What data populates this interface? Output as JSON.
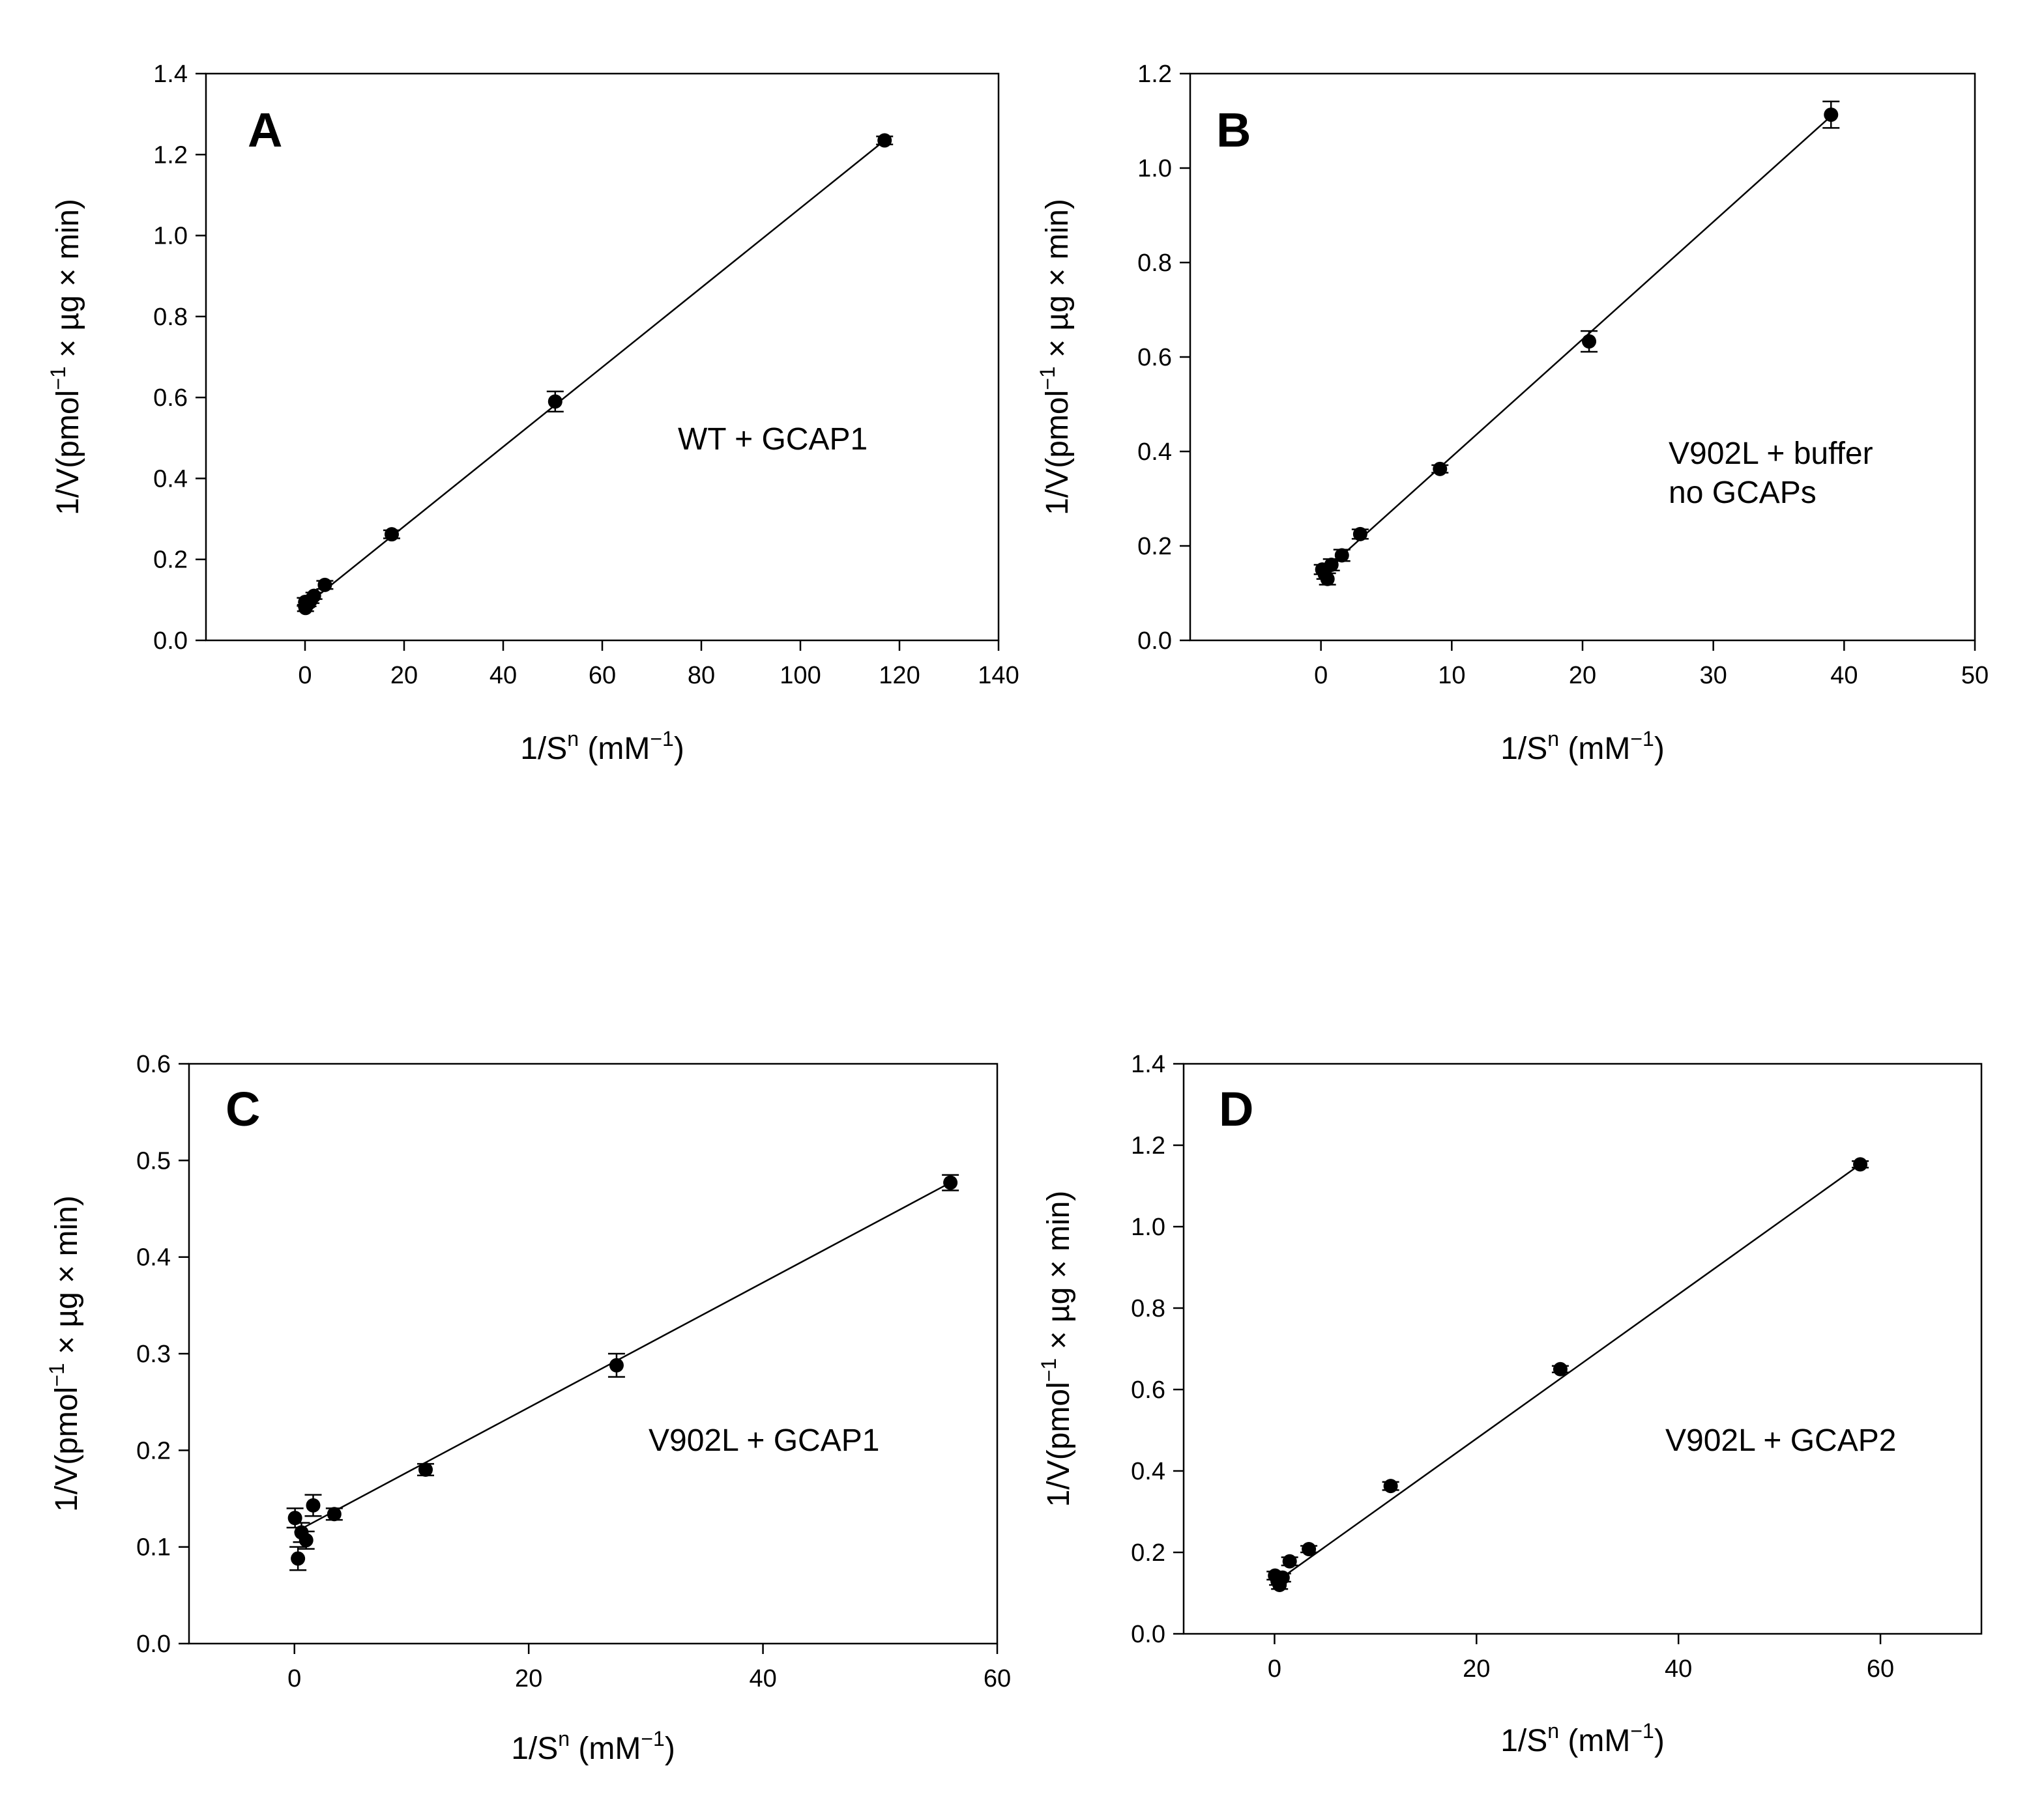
{
  "chart_data": [
    {
      "type": "scatter",
      "panel": "A",
      "annotation": [
        "WT + GCAP1"
      ],
      "xlabel": {
        "base": "1/S",
        "sup": "n",
        "unit_pre": " (mM",
        "unit_sup": "−1",
        "unit_post": ")"
      },
      "ylabel": {
        "pre": "1/V(pmol",
        "sup": "−1",
        "post": " × µg × min)"
      },
      "xlim": [
        -20,
        140
      ],
      "ylim": [
        0.0,
        1.4
      ],
      "xticks": [
        0,
        20,
        40,
        60,
        80,
        100,
        120,
        140
      ],
      "yticks": [
        0.0,
        0.2,
        0.4,
        0.6,
        0.8,
        1.0,
        1.2,
        1.4
      ],
      "xtick_labels": [
        "0",
        "20",
        "40",
        "60",
        "80",
        "100",
        "120",
        "140"
      ],
      "ytick_labels": [
        "0.0",
        "0.2",
        "0.4",
        "0.6",
        "0.8",
        "1.0",
        "1.2",
        "1.4"
      ],
      "fit_line": {
        "x": [
          0,
          117
        ],
        "y": [
          0.085,
          1.235
        ]
      },
      "points": [
        {
          "x": 0.05,
          "y": 0.095,
          "err": 0.01
        },
        {
          "x": 0.1,
          "y": 0.08,
          "err": 0.008
        },
        {
          "x": 0.3,
          "y": 0.088,
          "err": 0.006
        },
        {
          "x": 0.6,
          "y": 0.09,
          "err": 0.006
        },
        {
          "x": 1.2,
          "y": 0.1,
          "err": 0.008
        },
        {
          "x": 1.8,
          "y": 0.11,
          "err": 0.008
        },
        {
          "x": 4,
          "y": 0.137,
          "err": 0.01
        },
        {
          "x": 17.5,
          "y": 0.262,
          "err": 0.01
        },
        {
          "x": 50.5,
          "y": 0.59,
          "err": 0.025
        },
        {
          "x": 117,
          "y": 1.235,
          "err": 0.01
        }
      ]
    },
    {
      "type": "scatter",
      "panel": "B",
      "annotation": [
        "V902L + buffer",
        "no GCAPs"
      ],
      "xlabel": {
        "base": "1/S",
        "sup": "n",
        "unit_pre": " (mM",
        "unit_sup": "−1",
        "unit_post": ")"
      },
      "ylabel": {
        "pre": "1/V(pmol",
        "sup": "−1",
        "post": " × µg × min)"
      },
      "xlim": [
        -10,
        50
      ],
      "ylim": [
        0.0,
        1.2
      ],
      "xticks": [
        0,
        10,
        20,
        30,
        40,
        50
      ],
      "yticks": [
        0.0,
        0.2,
        0.4,
        0.6,
        0.8,
        1.0,
        1.2
      ],
      "xtick_labels": [
        "0",
        "10",
        "20",
        "30",
        "40",
        "50"
      ],
      "ytick_labels": [
        "0.0",
        "0.2",
        "0.4",
        "0.6",
        "0.8",
        "1.0",
        "1.2"
      ],
      "fit_line": {
        "x": [
          0,
          39
        ],
        "y": [
          0.14,
          1.11
        ]
      },
      "points": [
        {
          "x": 0.1,
          "y": 0.15,
          "err": 0.01
        },
        {
          "x": 0.3,
          "y": 0.14,
          "err": 0.01
        },
        {
          "x": 0.5,
          "y": 0.13,
          "err": 0.012
        },
        {
          "x": 0.8,
          "y": 0.16,
          "err": 0.012
        },
        {
          "x": 1.6,
          "y": 0.18,
          "err": 0.012
        },
        {
          "x": 3.0,
          "y": 0.225,
          "err": 0.01
        },
        {
          "x": 9.1,
          "y": 0.363,
          "err": 0.008
        },
        {
          "x": 20.5,
          "y": 0.633,
          "err": 0.022
        },
        {
          "x": 39,
          "y": 1.113,
          "err": 0.028
        }
      ]
    },
    {
      "type": "scatter",
      "panel": "C",
      "annotation": [
        "V902L + GCAP1"
      ],
      "xlabel": {
        "base": "1/S",
        "sup": "n",
        "unit_pre": " (mM",
        "unit_sup": "−1",
        "unit_post": ")"
      },
      "ylabel": {
        "pre": "1/V(pmol",
        "sup": "−1",
        "post": " × µg × min)"
      },
      "xlim": [
        -9,
        60
      ],
      "ylim": [
        0.0,
        0.6
      ],
      "xticks": [
        0,
        20,
        40,
        60
      ],
      "yticks": [
        0.0,
        0.1,
        0.2,
        0.3,
        0.4,
        0.5,
        0.6
      ],
      "xtick_labels": [
        "0",
        "20",
        "40",
        "60"
      ],
      "ytick_labels": [
        "0.0",
        "0.1",
        "0.2",
        "0.3",
        "0.4",
        "0.5",
        "0.6"
      ],
      "fit_line": {
        "x": [
          0,
          56
        ],
        "y": [
          0.115,
          0.477
        ]
      },
      "points": [
        {
          "x": 0.05,
          "y": 0.13,
          "err": 0.01
        },
        {
          "x": 0.3,
          "y": 0.088,
          "err": 0.012
        },
        {
          "x": 0.6,
          "y": 0.115,
          "err": 0.01
        },
        {
          "x": 1.0,
          "y": 0.107,
          "err": 0.009
        },
        {
          "x": 1.6,
          "y": 0.143,
          "err": 0.011
        },
        {
          "x": 3.4,
          "y": 0.134,
          "err": 0.006
        },
        {
          "x": 11.2,
          "y": 0.18,
          "err": 0.006
        },
        {
          "x": 27.5,
          "y": 0.288,
          "err": 0.012
        },
        {
          "x": 56,
          "y": 0.477,
          "err": 0.008
        }
      ]
    },
    {
      "type": "scatter",
      "panel": "D",
      "annotation": [
        "V902L + GCAP2"
      ],
      "xlabel": {
        "base": "1/S",
        "sup": "n",
        "unit_pre": " (mM",
        "unit_sup": "−1",
        "unit_post": ")"
      },
      "ylabel": {
        "pre": "1/V(pmol",
        "sup": "−1",
        "post": " × µg × min)"
      },
      "xlim": [
        -9,
        70
      ],
      "ylim": [
        0.0,
        1.4
      ],
      "xticks": [
        0,
        20,
        40,
        60
      ],
      "yticks": [
        0.0,
        0.2,
        0.4,
        0.6,
        0.8,
        1.0,
        1.2,
        1.4
      ],
      "xtick_labels": [
        "0",
        "20",
        "40",
        "60"
      ],
      "ytick_labels": [
        "0.0",
        "0.2",
        "0.4",
        "0.6",
        "0.8",
        "1.0",
        "1.2",
        "1.4"
      ],
      "fit_line": {
        "x": [
          0,
          58
        ],
        "y": [
          0.125,
          1.153
        ]
      },
      "points": [
        {
          "x": 0.05,
          "y": 0.143,
          "err": 0.01
        },
        {
          "x": 0.3,
          "y": 0.13,
          "err": 0.01
        },
        {
          "x": 0.5,
          "y": 0.12,
          "err": 0.01
        },
        {
          "x": 0.8,
          "y": 0.138,
          "err": 0.01
        },
        {
          "x": 1.5,
          "y": 0.178,
          "err": 0.01
        },
        {
          "x": 3.4,
          "y": 0.208,
          "err": 0.008
        },
        {
          "x": 11.5,
          "y": 0.363,
          "err": 0.01
        },
        {
          "x": 28.3,
          "y": 0.65,
          "err": 0.008
        },
        {
          "x": 58,
          "y": 1.153,
          "err": 0.008
        }
      ]
    }
  ]
}
